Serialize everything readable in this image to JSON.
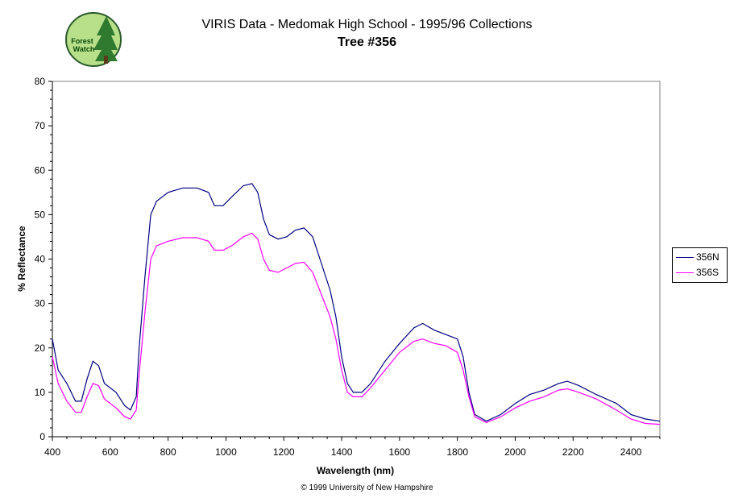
{
  "chart_data": {
    "type": "line",
    "title": "VIRIS Data - Medomak High School - 1995/96 Collections",
    "subtitle": "Tree #356",
    "xlabel": "Wavelength (nm)",
    "ylabel": "% Reflectance",
    "xlim": [
      400,
      2500
    ],
    "ylim": [
      0,
      80
    ],
    "xticks": [
      400,
      600,
      800,
      1000,
      1200,
      1400,
      1600,
      1800,
      2000,
      2200,
      2400
    ],
    "yticks": [
      0,
      10,
      20,
      30,
      40,
      50,
      60,
      70,
      80
    ],
    "grid": false,
    "legend_position": "right",
    "series": [
      {
        "name": "356N",
        "color": "#000080",
        "points": [
          [
            400,
            22
          ],
          [
            420,
            15
          ],
          [
            450,
            12
          ],
          [
            480,
            8
          ],
          [
            500,
            8
          ],
          [
            520,
            13
          ],
          [
            540,
            17
          ],
          [
            560,
            16
          ],
          [
            580,
            12
          ],
          [
            620,
            10
          ],
          [
            650,
            7
          ],
          [
            670,
            6
          ],
          [
            690,
            9
          ],
          [
            700,
            20
          ],
          [
            720,
            36
          ],
          [
            740,
            50
          ],
          [
            760,
            53
          ],
          [
            800,
            55
          ],
          [
            850,
            56
          ],
          [
            900,
            56
          ],
          [
            940,
            55
          ],
          [
            960,
            52
          ],
          [
            990,
            52
          ],
          [
            1020,
            54
          ],
          [
            1060,
            56.5
          ],
          [
            1090,
            57
          ],
          [
            1110,
            55
          ],
          [
            1130,
            49
          ],
          [
            1150,
            45.5
          ],
          [
            1180,
            44.5
          ],
          [
            1210,
            45
          ],
          [
            1240,
            46.5
          ],
          [
            1270,
            47
          ],
          [
            1300,
            45
          ],
          [
            1330,
            39
          ],
          [
            1360,
            33
          ],
          [
            1380,
            27
          ],
          [
            1400,
            18
          ],
          [
            1420,
            12
          ],
          [
            1440,
            10
          ],
          [
            1470,
            10
          ],
          [
            1500,
            12
          ],
          [
            1550,
            17
          ],
          [
            1600,
            21
          ],
          [
            1650,
            24.5
          ],
          [
            1680,
            25.5
          ],
          [
            1720,
            24
          ],
          [
            1760,
            23
          ],
          [
            1800,
            22
          ],
          [
            1820,
            18
          ],
          [
            1840,
            10
          ],
          [
            1860,
            5
          ],
          [
            1900,
            3.5
          ],
          [
            1950,
            5
          ],
          [
            2000,
            7.5
          ],
          [
            2050,
            9.5
          ],
          [
            2100,
            10.5
          ],
          [
            2150,
            12
          ],
          [
            2180,
            12.5
          ],
          [
            2220,
            11.5
          ],
          [
            2280,
            9.5
          ],
          [
            2350,
            7.5
          ],
          [
            2400,
            5
          ],
          [
            2450,
            4
          ],
          [
            2500,
            3.5
          ]
        ]
      },
      {
        "name": "356S",
        "color": "#ff00ff",
        "points": [
          [
            400,
            18
          ],
          [
            420,
            12
          ],
          [
            450,
            8
          ],
          [
            480,
            5.5
          ],
          [
            500,
            5.5
          ],
          [
            520,
            9
          ],
          [
            540,
            12
          ],
          [
            560,
            11.5
          ],
          [
            580,
            8.5
          ],
          [
            620,
            6.5
          ],
          [
            650,
            4.5
          ],
          [
            670,
            4
          ],
          [
            690,
            6
          ],
          [
            700,
            14
          ],
          [
            720,
            28
          ],
          [
            740,
            40
          ],
          [
            760,
            43
          ],
          [
            800,
            44
          ],
          [
            850,
            44.8
          ],
          [
            900,
            44.8
          ],
          [
            940,
            44
          ],
          [
            960,
            42
          ],
          [
            990,
            42
          ],
          [
            1020,
            43
          ],
          [
            1060,
            45
          ],
          [
            1090,
            45.8
          ],
          [
            1110,
            44.5
          ],
          [
            1130,
            40
          ],
          [
            1150,
            37.5
          ],
          [
            1180,
            37
          ],
          [
            1210,
            38
          ],
          [
            1240,
            39
          ],
          [
            1270,
            39.3
          ],
          [
            1300,
            37
          ],
          [
            1330,
            32
          ],
          [
            1360,
            27
          ],
          [
            1380,
            22
          ],
          [
            1400,
            15
          ],
          [
            1420,
            10
          ],
          [
            1440,
            9
          ],
          [
            1470,
            9
          ],
          [
            1500,
            11
          ],
          [
            1550,
            15
          ],
          [
            1600,
            19
          ],
          [
            1650,
            21.5
          ],
          [
            1680,
            22
          ],
          [
            1720,
            21
          ],
          [
            1760,
            20.5
          ],
          [
            1800,
            19
          ],
          [
            1820,
            15
          ],
          [
            1840,
            9
          ],
          [
            1860,
            4.5
          ],
          [
            1900,
            3.2
          ],
          [
            1950,
            4.5
          ],
          [
            2000,
            6.5
          ],
          [
            2050,
            8
          ],
          [
            2100,
            9
          ],
          [
            2150,
            10.5
          ],
          [
            2180,
            10.8
          ],
          [
            2220,
            10
          ],
          [
            2280,
            8.5
          ],
          [
            2350,
            6
          ],
          [
            2400,
            4
          ],
          [
            2450,
            3
          ],
          [
            2500,
            2.8
          ]
        ]
      }
    ]
  },
  "logo": {
    "text_line1": "Forest",
    "text_line2": "Watch"
  },
  "copyright": "© 1999 University of New Hampshire"
}
